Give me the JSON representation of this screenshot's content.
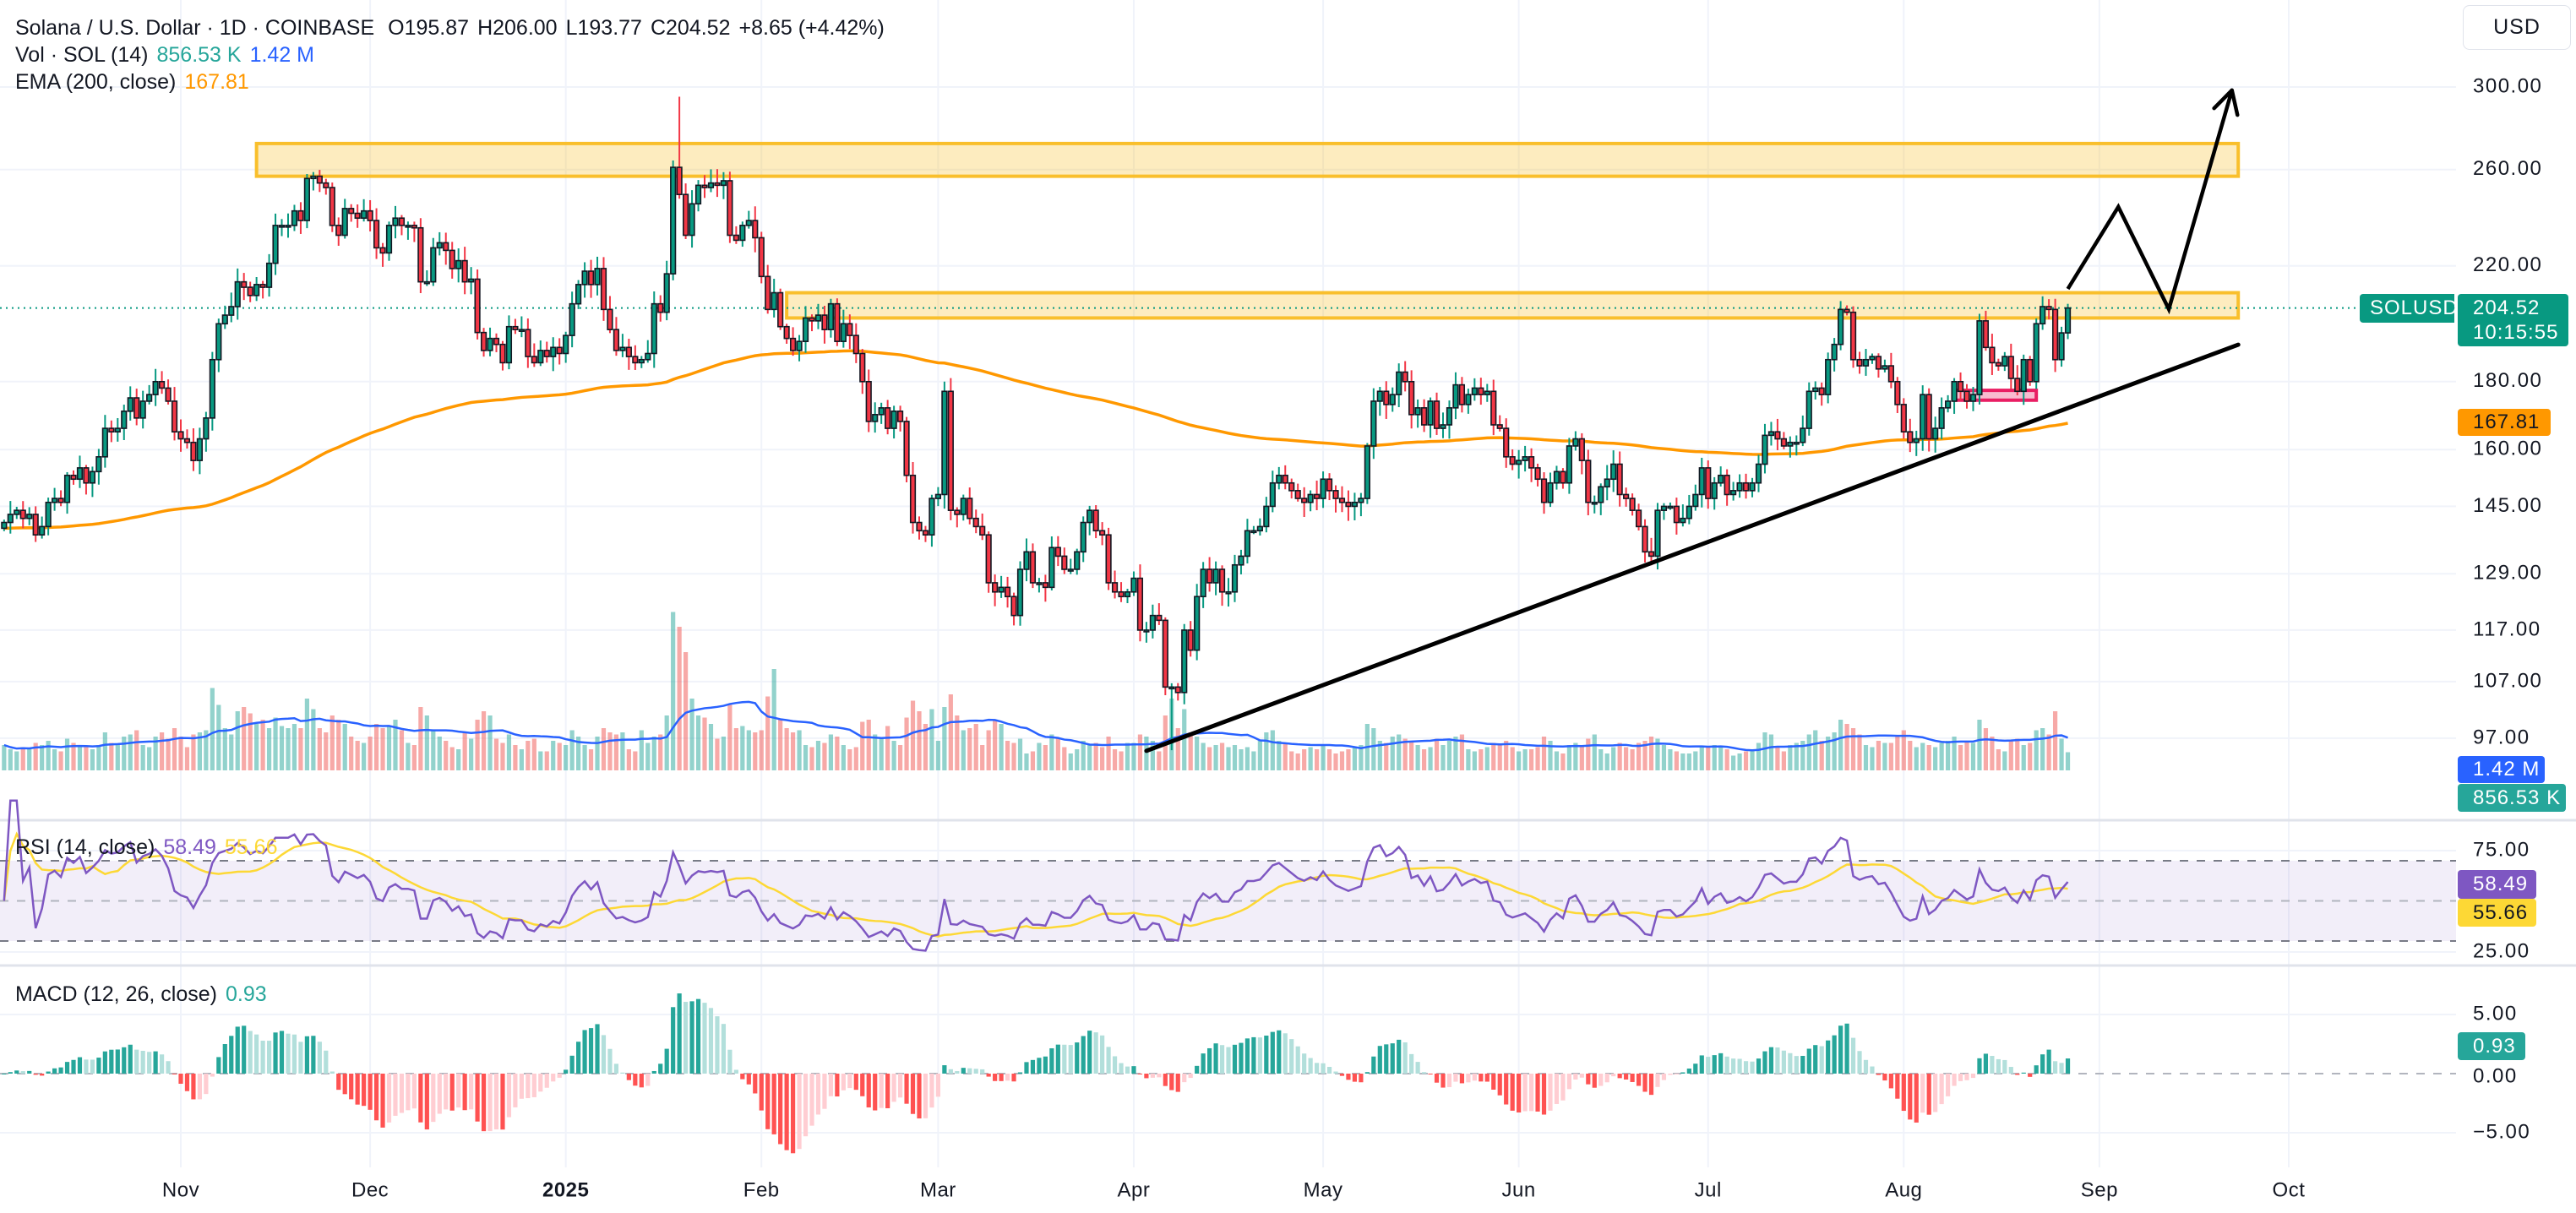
{
  "legend": {
    "title": "Solana / U.S. Dollar · 1D · COINBASE",
    "open": "O195.87",
    "high": "H206.00",
    "low": "L193.77",
    "close": "C204.52",
    "change": "+8.65 (+4.42%)",
    "volume_label": "Vol · SOL (14)",
    "volume_value": "856.53 K",
    "volume_ma_value": "1.42 M",
    "ema_label": "EMA (200, close)",
    "ema_value": "167.81",
    "rsi_label": "RSI (14, close)",
    "rsi_value": "58.49",
    "rsi_ma_value": "55.66",
    "macd_label": "MACD (12, 26, close)",
    "macd_value": "0.93"
  },
  "price_axis": {
    "currency_button": "USD",
    "symbol_tag": "SOLUSD",
    "last_price": "204.52",
    "countdown": "10:15:55",
    "ema_tag": "167.81",
    "vol_ma_tag": "1.42 M",
    "vol_tag": "856.53 K",
    "rsi_tag": "58.49",
    "rsi_ma_tag": "55.66",
    "macd_tag": "0.93"
  },
  "colors": {
    "up": "#089981",
    "down": "#f23645",
    "volume_up": "rgba(38,166,154,0.5)",
    "volume_down": "rgba(239,83,80,0.5)",
    "volume_ma": "#2962ff",
    "ema": "#ff9800",
    "rsi": "#7e57c2",
    "rsi_ma": "#fdd835",
    "macd_up_strong": "#26a69a",
    "macd_up_weak": "#b2dfdb",
    "macd_down_weak": "#ffcdd2",
    "macd_down_strong": "#ff5252",
    "zone": "#f9bf2c",
    "box": "#e91e63",
    "drawing": "#000000"
  },
  "chart_data": {
    "type": "candlestick",
    "interval": "1D",
    "symbol": "SOLUSD",
    "y_scale": "log",
    "grid": true,
    "price_ticks": [
      "300.00",
      "260.00",
      "220.00",
      "180.00",
      "160.00",
      "145.00",
      "129.00",
      "117.00",
      "107.00",
      "97.00"
    ],
    "rsi_ticks": [
      "75.00",
      "25.00"
    ],
    "rsi_levels": [
      70,
      50,
      30
    ],
    "macd_ticks": [
      "5.00",
      "0.00",
      "−5.00"
    ],
    "time_ticks": [
      {
        "date": "2024-11-01",
        "label": "Nov"
      },
      {
        "date": "2024-12-01",
        "label": "Dec"
      },
      {
        "date": "2025-01-01",
        "label": "2025",
        "bold": true
      },
      {
        "date": "2025-02-01",
        "label": "Feb"
      },
      {
        "date": "2025-03-01",
        "label": "Mar"
      },
      {
        "date": "2025-04-01",
        "label": "Apr"
      },
      {
        "date": "2025-05-01",
        "label": "May"
      },
      {
        "date": "2025-06-01",
        "label": "Jun"
      },
      {
        "date": "2025-07-01",
        "label": "Jul"
      },
      {
        "date": "2025-08-01",
        "label": "Aug"
      },
      {
        "date": "2025-09-01",
        "label": "Sep"
      },
      {
        "date": "2025-10-01",
        "label": "Oct"
      }
    ],
    "candles": [
      {
        "month": "2024-10",
        "first_day": 4,
        "close": [
          141,
          143,
          144,
          142,
          143,
          138,
          140,
          146,
          147,
          146,
          153,
          152,
          155,
          151,
          154,
          158,
          166,
          165,
          166,
          171,
          175,
          169,
          174,
          176,
          180,
          178,
          174,
          165
        ],
        "volume_m": [
          1.2,
          1.0,
          0.9,
          1.1,
          1.0,
          1.3,
          1.2,
          1.4,
          1.0,
          0.9,
          1.5,
          1.3,
          1.2,
          1.1,
          1.0,
          1.2,
          1.8,
          1.3,
          1.2,
          1.6,
          1.7,
          1.9,
          1.2,
          1.1,
          1.6,
          1.8,
          1.5,
          2.0
        ]
      },
      {
        "month": "2024-11",
        "first_day": 1,
        "close": [
          163,
          162,
          157,
          163,
          169,
          187,
          199,
          202,
          205,
          214,
          212,
          209,
          213,
          212,
          221,
          236,
          236,
          236,
          242,
          238,
          256,
          257,
          254,
          252,
          236,
          232,
          243,
          241,
          239,
          242
        ],
        "volume_m": [
          1.6,
          1.1,
          1.7,
          1.8,
          1.9,
          3.9,
          3.1,
          2.0,
          1.7,
          2.8,
          3.0,
          2.7,
          2.2,
          2.4,
          2.0,
          2.5,
          2.1,
          2.0,
          2.2,
          2.0,
          3.4,
          2.9,
          2.0,
          1.8,
          2.6,
          2.4,
          2.2,
          1.6,
          1.4,
          1.3
        ]
      },
      {
        "month": "2024-12",
        "first_day": 1,
        "close": [
          238,
          227,
          225,
          236,
          239,
          236,
          236,
          235,
          214,
          214,
          227,
          229,
          226,
          219,
          222,
          214,
          215,
          196,
          190,
          194,
          192,
          186,
          198,
          197,
          197,
          188,
          186,
          190,
          188,
          191,
          189
        ],
        "volume_m": [
          1.6,
          2.2,
          2.0,
          2.1,
          2.4,
          1.9,
          1.3,
          1.2,
          3.0,
          2.6,
          1.9,
          1.6,
          1.4,
          1.1,
          1.0,
          1.8,
          1.5,
          2.4,
          2.8,
          2.6,
          1.5,
          1.3,
          1.7,
          1.2,
          1.0,
          1.4,
          1.5,
          0.9,
          0.9,
          1.4,
          1.3
        ]
      },
      {
        "month": "2025-01",
        "first_day": 1,
        "close": [
          195,
          206,
          213,
          218,
          213,
          219,
          204,
          197,
          190,
          191,
          188,
          186,
          187,
          189,
          206,
          203,
          217,
          261,
          249,
          232,
          245,
          253,
          252,
          254,
          253,
          255,
          232,
          230,
          236,
          238,
          231
        ],
        "volume_m": [
          1.2,
          1.9,
          1.6,
          1.2,
          1.0,
          1.6,
          2.0,
          1.8,
          1.7,
          1.8,
          1.0,
          0.9,
          1.9,
          1.3,
          1.6,
          1.7,
          2.6,
          7.5,
          6.8,
          5.6,
          3.4,
          2.6,
          2.5,
          2.2,
          1.5,
          1.6,
          3.1,
          2.0,
          2.1,
          1.9,
          1.8
        ]
      },
      {
        "month": "2025-02",
        "first_day": 1,
        "close": [
          216,
          204,
          210,
          198,
          194,
          190,
          193,
          201,
          200,
          202,
          197,
          206,
          193,
          199,
          195,
          189,
          180,
          168,
          170,
          172,
          166,
          171,
          168,
          153,
          141,
          139,
          138,
          147
        ],
        "volume_m": [
          1.9,
          3.5,
          4.8,
          2.4,
          2.0,
          1.8,
          1.9,
          1.2,
          1.1,
          1.4,
          1.3,
          1.7,
          1.6,
          1.2,
          1.0,
          1.1,
          2.3,
          2.4,
          1.7,
          1.5,
          2.1,
          1.4,
          1.2,
          2.5,
          3.3,
          2.8,
          2.2,
          2.9
        ]
      },
      {
        "month": "2025-03",
        "first_day": 1,
        "close": [
          148,
          177,
          144,
          143,
          147,
          142,
          140,
          138,
          127,
          125,
          126,
          124,
          120,
          130,
          134,
          127,
          127,
          126,
          135,
          133,
          130,
          130,
          134,
          141,
          144,
          139,
          138,
          127,
          125,
          124,
          125
        ],
        "volume_m": [
          1.4,
          3.0,
          3.6,
          2.6,
          1.9,
          2.0,
          2.2,
          1.2,
          1.9,
          2.4,
          2.2,
          1.4,
          1.3,
          1.5,
          0.8,
          0.9,
          1.3,
          1.2,
          1.7,
          1.5,
          1.1,
          0.8,
          1.0,
          1.4,
          1.2,
          1.3,
          1.1,
          1.6,
          1.0,
          0.9,
          1.3
        ]
      },
      {
        "month": "2025-04",
        "first_day": 1,
        "close": [
          128,
          117,
          117,
          120,
          119,
          106,
          106,
          105,
          117,
          113,
          124,
          130,
          127,
          130,
          125,
          125,
          131,
          133,
          139,
          139,
          140,
          145,
          151,
          153,
          151,
          149,
          147,
          146,
          148,
          147
        ],
        "volume_m": [
          1.3,
          1.7,
          1.6,
          1.4,
          0.9,
          2.6,
          3.4,
          2.0,
          2.9,
          1.8,
          1.6,
          1.3,
          1.1,
          1.2,
          1.3,
          1.1,
          1.2,
          1.0,
          1.1,
          0.9,
          1.4,
          1.8,
          1.9,
          1.4,
          1.3,
          0.9,
          0.8,
          1.0,
          1.1,
          1.0
        ]
      },
      {
        "month": "2025-05",
        "first_day": 1,
        "close": [
          152,
          149,
          147,
          146,
          145,
          146,
          147,
          161,
          174,
          177,
          173,
          176,
          183,
          180,
          170,
          172,
          167,
          174,
          166,
          167,
          172,
          179,
          173,
          176,
          178,
          176,
          177,
          167,
          166,
          158,
          156
        ],
        "volume_m": [
          1.2,
          1.0,
          0.8,
          0.9,
          1.0,
          1.1,
          1.2,
          2.2,
          2.0,
          1.4,
          1.3,
          1.6,
          1.7,
          1.5,
          1.4,
          1.2,
          1.0,
          1.1,
          1.5,
          1.2,
          1.4,
          1.6,
          1.7,
          1.0,
          0.9,
          1.0,
          1.1,
          1.3,
          1.2,
          1.4,
          1.1
        ]
      },
      {
        "month": "2025-06",
        "first_day": 1,
        "close": [
          157,
          158,
          155,
          152,
          146,
          151,
          154,
          151,
          161,
          163,
          157,
          146,
          146,
          150,
          152,
          156,
          148,
          147,
          144,
          140,
          134,
          133,
          144,
          145,
          145,
          141,
          142,
          145,
          148,
          155
        ],
        "volume_m": [
          0.9,
          1.0,
          1.0,
          1.1,
          1.6,
          1.4,
          0.9,
          0.8,
          1.2,
          1.3,
          1.2,
          1.5,
          1.7,
          1.0,
          0.8,
          1.1,
          1.3,
          1.1,
          1.0,
          1.3,
          1.4,
          1.6,
          1.5,
          1.2,
          1.0,
          0.9,
          0.8,
          0.8,
          0.9,
          1.1
        ]
      },
      {
        "month": "2025-07",
        "first_day": 1,
        "close": [
          147,
          151,
          153,
          148,
          149,
          151,
          149,
          151,
          156,
          164,
          165,
          163,
          161,
          162,
          162,
          166,
          177,
          178,
          176,
          187,
          192,
          204,
          203,
          187,
          185,
          187,
          188,
          184,
          185,
          180,
          173
        ],
        "volume_m": [
          1.1,
          1.2,
          1.1,
          1.0,
          0.7,
          0.8,
          0.9,
          1.0,
          1.3,
          1.8,
          1.7,
          1.1,
          0.9,
          1.2,
          1.3,
          1.4,
          1.7,
          1.9,
          1.4,
          1.6,
          1.8,
          2.4,
          2.2,
          2.0,
          1.7,
          1.2,
          1.1,
          1.4,
          1.3,
          1.3,
          1.6
        ]
      },
      {
        "month": "2025-08",
        "first_day": 1,
        "close": [
          165,
          162,
          163,
          176,
          163,
          166,
          172,
          174,
          180,
          177,
          174,
          176,
          200,
          191,
          186,
          185,
          188,
          181,
          177,
          187,
          180,
          199,
          205,
          204,
          187,
          195.87,
          204.52
        ],
        "volume_m": [
          1.9,
          1.4,
          1.1,
          1.3,
          1.2,
          1.1,
          1.3,
          1.4,
          1.6,
          1.2,
          1.4,
          1.3,
          2.4,
          2.0,
          1.6,
          1.0,
          0.9,
          1.4,
          1.5,
          1.2,
          1.3,
          1.9,
          2.0,
          1.7,
          2.8,
          1.5,
          0.86
        ]
      }
    ],
    "last_candle": {
      "date": "2025-08-27",
      "open": 195.87,
      "high": 206.0,
      "low": 193.77,
      "close": 204.52
    },
    "wick_extremes": [
      {
        "date": "2025-01-19",
        "high": 295
      },
      {
        "date": "2025-03-02",
        "high": 180
      },
      {
        "date": "2025-04-07",
        "low": 95
      }
    ],
    "indicators": {
      "ema_period": 200,
      "volume_ma_period": 14,
      "rsi_period": 14,
      "rsi_ma_period": 14,
      "macd": [
        12,
        26,
        9
      ]
    },
    "drawings": {
      "zones": [
        {
          "from": "2024-11-13",
          "to": "2025-09-23",
          "low": 257,
          "high": 272
        },
        {
          "from": "2025-02-05",
          "to": "2025-09-23",
          "low": 201,
          "high": 210
        }
      ],
      "box": {
        "from": "2025-08-09",
        "to": "2025-08-22",
        "low": 174.3,
        "high": 177.3
      },
      "trendline": [
        {
          "date": "2025-04-03",
          "price": 94.9
        },
        {
          "date": "2025-09-23",
          "price": 191.9
        }
      ],
      "projection_arrow": [
        {
          "date": "2025-08-27",
          "price": 211.4
        },
        {
          "date": "2025-09-04",
          "price": 243.7
        },
        {
          "date": "2025-09-12",
          "price": 204.1
        },
        {
          "date": "2025-09-22",
          "price": 298.3
        }
      ]
    }
  }
}
